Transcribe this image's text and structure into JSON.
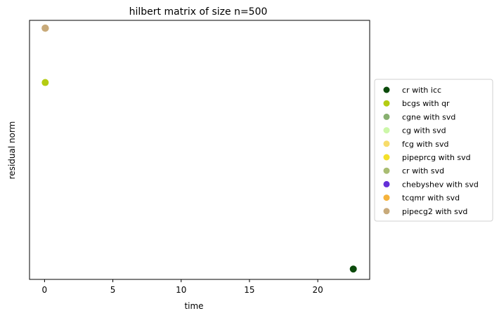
{
  "chart_data": {
    "type": "scatter",
    "title": "hilbert matrix of size n=500",
    "xlabel": "time",
    "ylabel": "residual norm",
    "xlim": [
      -1.1,
      23.8
    ],
    "ylim": [
      0,
      1
    ],
    "x_ticks": [
      0,
      5,
      10,
      15,
      20
    ],
    "x_tick_labels": [
      "0",
      "5",
      "10",
      "15",
      "20"
    ],
    "y_ticks_shown": false,
    "grid": false,
    "legend_position": "outside-right",
    "series": [
      {
        "name": "cr with icc",
        "color": "#0b4a0b",
        "points": [
          {
            "x": 22.6,
            "y": 0.04
          }
        ]
      },
      {
        "name": "bcgs with qr",
        "color": "#b4cc12",
        "points": [
          {
            "x": 0.05,
            "y": 0.76
          }
        ]
      },
      {
        "name": "cgne with svd",
        "color": "#88b070",
        "points": [
          {
            "x": 0.05,
            "y": 0.97
          }
        ]
      },
      {
        "name": "cg with svd",
        "color": "#ccf7a9",
        "points": [
          {
            "x": 0.05,
            "y": 0.97
          }
        ]
      },
      {
        "name": "fcg with svd",
        "color": "#f7dc6a",
        "points": [
          {
            "x": 0.05,
            "y": 0.97
          }
        ]
      },
      {
        "name": "pipeprcg with svd",
        "color": "#f4e02a",
        "points": [
          {
            "x": 0.05,
            "y": 0.97
          }
        ]
      },
      {
        "name": "cr with svd",
        "color": "#a9bd72",
        "points": [
          {
            "x": 0.05,
            "y": 0.97
          }
        ]
      },
      {
        "name": "chebyshev with svd",
        "color": "#6430d8",
        "points": [
          {
            "x": 0.05,
            "y": 0.97
          }
        ]
      },
      {
        "name": "tcqmr with svd",
        "color": "#f5b33c",
        "points": [
          {
            "x": 0.05,
            "y": 0.97
          }
        ]
      },
      {
        "name": "pipecg2 with svd",
        "color": "#c8aa7a",
        "points": [
          {
            "x": 0.05,
            "y": 0.97
          }
        ]
      }
    ]
  }
}
